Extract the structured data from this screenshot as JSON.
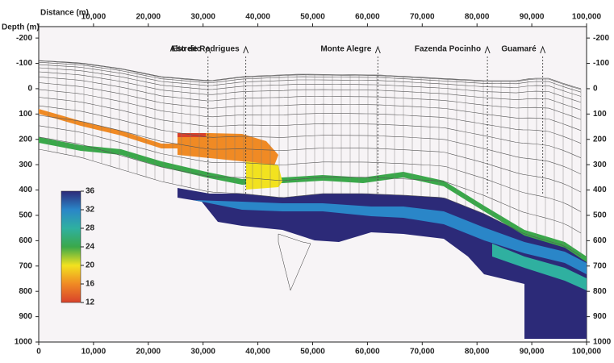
{
  "chart_data": {
    "type": "cross-section",
    "x_label": "Distance (m)",
    "y_label": "Depth (m)",
    "xlim": [
      0,
      100000
    ],
    "xticks": [
      0,
      {
        "value": 10000,
        "label": "10,000"
      },
      {
        "value": 20000,
        "label": "20,000"
      },
      {
        "value": 30000,
        "label": "30,000"
      },
      {
        "value": 40000,
        "label": "40,000"
      },
      {
        "value": 50000,
        "label": "50,000"
      },
      {
        "value": 60000,
        "label": "60,000"
      },
      {
        "value": 70000,
        "label": "70,000"
      },
      {
        "value": 80000,
        "label": "80,000"
      },
      {
        "value": 90000,
        "label": "90,000"
      },
      {
        "value": 100000,
        "label": "100,000"
      }
    ],
    "ylim": [
      -245,
      1000
    ],
    "y_inverted": true,
    "yticks": [
      -200,
      -100,
      0,
      100,
      200,
      300,
      400,
      500,
      600,
      700,
      800,
      900,
      1000
    ],
    "locations": [
      {
        "name": "Estreito",
        "x": 30900
      },
      {
        "name": "Alto de Rodrigues",
        "x": 37800
      },
      {
        "name": "Monte Alegre",
        "x": 61900
      },
      {
        "name": "Fazenda Pocinho",
        "x": 81900
      },
      {
        "name": "Guamaré",
        "x": 92000
      }
    ],
    "colorbar": {
      "lim": [
        12,
        36
      ],
      "ticks": [
        36,
        32,
        28,
        24,
        20,
        16,
        12
      ],
      "colors": [
        "#d8412b",
        "#f08a24",
        "#f2e21f",
        "#3aa84a",
        "#2fb0a0",
        "#2a86c8",
        "#2c2a78"
      ]
    }
  }
}
